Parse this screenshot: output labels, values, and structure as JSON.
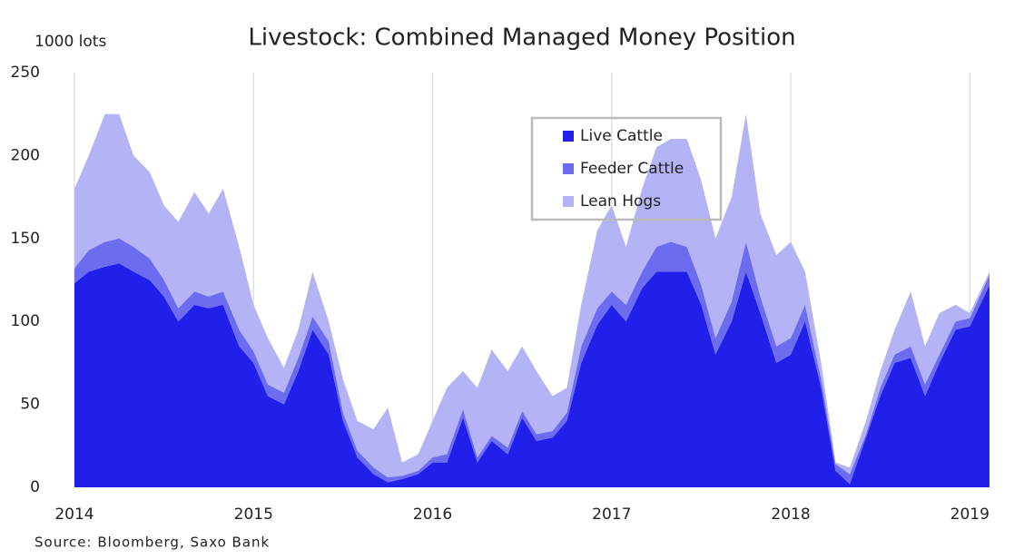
{
  "chart_data": {
    "type": "stacked_area",
    "title": "Livestock: Combined Managed Money Position",
    "y_axis_label": "1000 lots",
    "source": "Source: Bloomberg, Saxo Bank",
    "x": [
      2014,
      2014.08,
      2014.17,
      2014.25,
      2014.33,
      2014.42,
      2014.5,
      2014.58,
      2014.67,
      2014.75,
      2014.83,
      2014.92,
      2015,
      2015.08,
      2015.17,
      2015.25,
      2015.33,
      2015.42,
      2015.5,
      2015.58,
      2015.67,
      2015.75,
      2015.83,
      2015.92,
      2016,
      2016.08,
      2016.17,
      2016.25,
      2016.33,
      2016.42,
      2016.5,
      2016.58,
      2016.67,
      2016.75,
      2016.83,
      2016.92,
      2017,
      2017.08,
      2017.17,
      2017.25,
      2017.33,
      2017.42,
      2017.5,
      2017.58,
      2017.67,
      2017.75,
      2017.83,
      2017.92,
      2018,
      2018.08,
      2018.17,
      2018.25,
      2018.33,
      2018.42,
      2018.5,
      2018.58,
      2018.67,
      2018.75,
      2018.83,
      2018.92,
      2019,
      2019.11
    ],
    "series": [
      {
        "name": "Live Cattle",
        "color": "#2020ea",
        "values": [
          123,
          130,
          133,
          135,
          130,
          125,
          115,
          100,
          110,
          108,
          110,
          85,
          75,
          55,
          50,
          70,
          95,
          80,
          40,
          18,
          8,
          3,
          5,
          8,
          15,
          15,
          42,
          15,
          28,
          20,
          42,
          28,
          30,
          40,
          75,
          98,
          110,
          100,
          120,
          130,
          130,
          130,
          110,
          80,
          100,
          130,
          105,
          75,
          80,
          100,
          60,
          10,
          2,
          30,
          55,
          75,
          78,
          55,
          75,
          95,
          97,
          122
        ]
      },
      {
        "name": "Feeder Cattle",
        "color": "#6c6cf0",
        "values": [
          9,
          13,
          15,
          15,
          15,
          13,
          10,
          8,
          8,
          7,
          8,
          10,
          7,
          7,
          7,
          8,
          8,
          8,
          5,
          4,
          4,
          3,
          2,
          2,
          3,
          5,
          5,
          3,
          3,
          4,
          4,
          4,
          4,
          5,
          10,
          10,
          8,
          10,
          10,
          15,
          18,
          15,
          12,
          10,
          12,
          18,
          10,
          10,
          10,
          10,
          5,
          4,
          6,
          2,
          5,
          5,
          7,
          7,
          5,
          5,
          5,
          6
        ]
      },
      {
        "name": "Lean Hogs",
        "color": "#b3b3f5",
        "values": [
          48,
          57,
          77,
          75,
          55,
          52,
          45,
          52,
          60,
          50,
          62,
          50,
          28,
          28,
          15,
          17,
          27,
          12,
          20,
          18,
          23,
          42,
          8,
          10,
          22,
          40,
          23,
          42,
          52,
          46,
          39,
          38,
          21,
          15,
          25,
          47,
          52,
          35,
          50,
          60,
          62,
          65,
          63,
          60,
          63,
          77,
          50,
          55,
          58,
          20,
          10,
          1,
          4,
          8,
          10,
          15,
          33,
          23,
          25,
          10,
          3,
          2
        ]
      }
    ],
    "xlim": [
      2014,
      2019.11
    ],
    "xticks": [
      2014,
      2015,
      2016,
      2017,
      2018,
      2019
    ],
    "ylim": [
      0,
      250
    ],
    "yticks": [
      0,
      50,
      100,
      150,
      200,
      250
    ],
    "xgrid": true
  }
}
